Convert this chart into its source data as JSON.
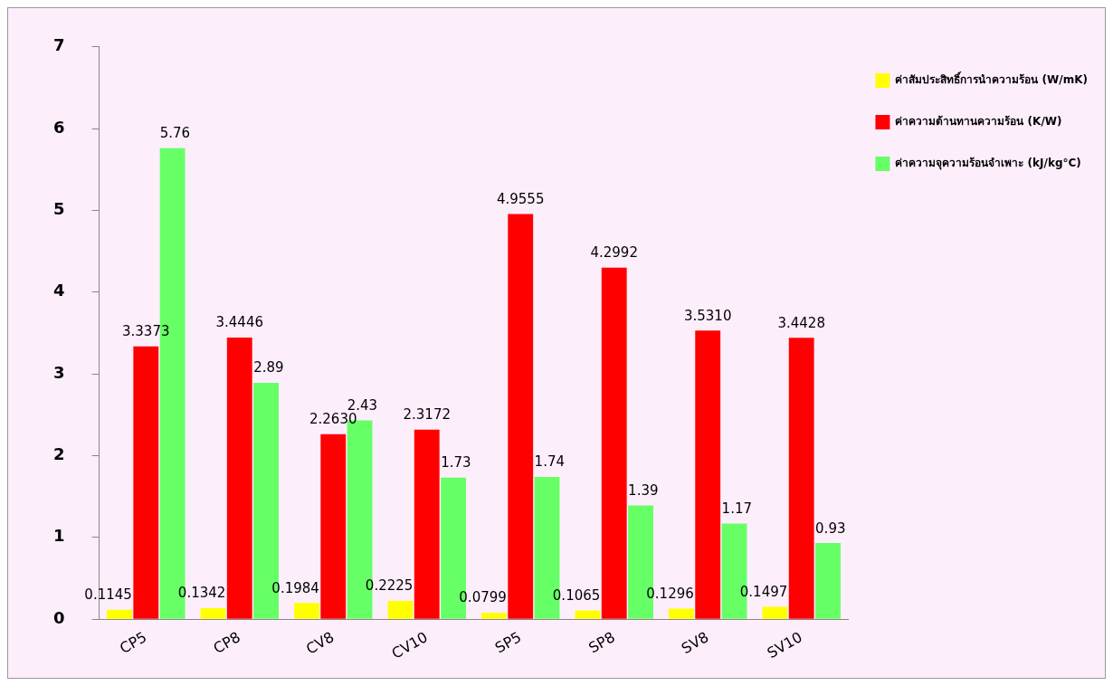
{
  "chart_data": {
    "type": "bar",
    "categories": [
      "CP5",
      "CP8",
      "CV8",
      "CV10",
      "SP5",
      "SP8",
      "SV8",
      "SV10"
    ],
    "series": [
      {
        "name": "ค่าสัมประสิทธิ์การนำความร้อน (W/mK)",
        "color": "#ffff00",
        "values": [
          0.1145,
          0.1342,
          0.1984,
          0.2225,
          0.0799,
          0.1065,
          0.1296,
          0.1497
        ],
        "value_labels": [
          "0.1145",
          "0.1342",
          "0.1984",
          "0.2225",
          "0.0799",
          "0.1065",
          "0.1296",
          "0.1497"
        ]
      },
      {
        "name": "ค่าความต้านทานความร้อน (K/W)",
        "color": "#ff0000",
        "values": [
          3.3373,
          3.4446,
          2.263,
          2.3172,
          4.9555,
          4.2992,
          3.531,
          3.4428
        ],
        "value_labels": [
          "3.3373",
          "3.4446",
          "2.2630",
          "2.3172",
          "4.9555",
          "4.2992",
          "3.5310",
          "3.4428"
        ]
      },
      {
        "name": "ค่าความจุความร้อนจำเพาะ (kJ/kg°C)",
        "color": "#66ff66",
        "values": [
          5.76,
          2.89,
          2.43,
          1.73,
          1.74,
          1.39,
          1.17,
          0.93
        ],
        "value_labels": [
          "5.76",
          "2.89",
          "2.43",
          "1.73",
          "1.74",
          "1.39",
          "1.17",
          "0.93"
        ]
      }
    ],
    "ylim": [
      0,
      7
    ],
    "yticks": [
      0,
      1,
      2,
      3,
      4,
      5,
      6,
      7
    ],
    "grid": false,
    "legend": "right"
  }
}
